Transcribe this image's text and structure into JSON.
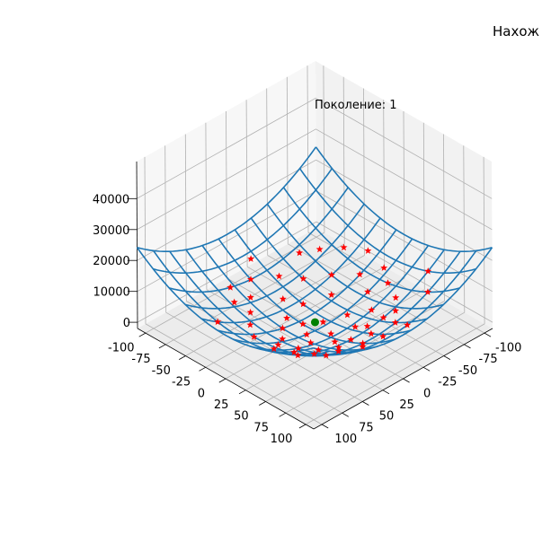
{
  "chart_data": {
    "type": "surface3d",
    "title": "Нахож",
    "annotation": "Поколение: 1",
    "x_ticks": [
      -100,
      -75,
      -50,
      -25,
      0,
      25,
      50,
      75,
      100
    ],
    "y_ticks": [
      -100,
      -75,
      -50,
      -25,
      0,
      25,
      50,
      75,
      100
    ],
    "z_ticks": [
      0,
      10000,
      20000,
      30000,
      40000
    ],
    "xlim": [
      -110,
      110
    ],
    "ylim": [
      -110,
      110
    ],
    "zlim": [
      -2000,
      52000
    ],
    "surface": {
      "function": "x^2 + y^2",
      "grid_min": -110,
      "grid_max": 110,
      "grid_lines": 12,
      "color": "#1f77b4"
    },
    "population": {
      "marker": "star",
      "color": "#ff0000",
      "points": [
        [
          -60,
          40,
          5000
        ],
        [
          -45,
          55,
          5200
        ],
        [
          -70,
          20,
          5300
        ],
        [
          -30,
          70,
          5800
        ],
        [
          -55,
          10,
          3200
        ],
        [
          -40,
          30,
          2500
        ],
        [
          -20,
          45,
          2400
        ],
        [
          -65,
          -10,
          4400
        ],
        [
          -50,
          -30,
          3500
        ],
        [
          -35,
          -15,
          1500
        ],
        [
          -25,
          15,
          900
        ],
        [
          -15,
          35,
          1500
        ],
        [
          -10,
          60,
          3700
        ],
        [
          -75,
          -40,
          7200
        ],
        [
          -80,
          5,
          6500
        ],
        [
          -5,
          80,
          6500
        ],
        [
          10,
          70,
          5000
        ],
        [
          25,
          55,
          3700
        ],
        [
          15,
          40,
          1800
        ],
        [
          5,
          25,
          700
        ],
        [
          -5,
          5,
          100
        ],
        [
          10,
          -5,
          150
        ],
        [
          20,
          10,
          500
        ],
        [
          30,
          25,
          1500
        ],
        [
          40,
          45,
          3600
        ],
        [
          50,
          30,
          3400
        ],
        [
          55,
          55,
          6000
        ],
        [
          35,
          65,
          5400
        ],
        [
          20,
          80,
          6800
        ],
        [
          65,
          40,
          5800
        ],
        [
          -30,
          -45,
          3000
        ],
        [
          -15,
          -60,
          3800
        ],
        [
          0,
          -40,
          1600
        ],
        [
          -10,
          -25,
          700
        ],
        [
          15,
          -20,
          600
        ],
        [
          30,
          -10,
          1000
        ],
        [
          45,
          5,
          2000
        ],
        [
          60,
          15,
          3800
        ],
        [
          70,
          -5,
          4900
        ],
        [
          55,
          -25,
          3600
        ],
        [
          40,
          -40,
          3200
        ],
        [
          25,
          -55,
          3600
        ],
        [
          10,
          -70,
          5000
        ],
        [
          -5,
          -85,
          7200
        ],
        [
          -45,
          -65,
          6200
        ],
        [
          -60,
          -55,
          6600
        ],
        [
          -25,
          90,
          8700
        ],
        [
          75,
          25,
          6200
        ],
        [
          35,
          -70,
          6100
        ],
        [
          -85,
          -20,
          7600
        ],
        [
          5,
          50,
          2500
        ],
        [
          -35,
          50,
          3700
        ],
        [
          45,
          -55,
          5000
        ],
        [
          80,
          60,
          10000
        ],
        [
          -90,
          50,
          10600
        ],
        [
          60,
          75,
          9200
        ],
        [
          -70,
          70,
          9800
        ],
        [
          90,
          -30,
          9000
        ]
      ]
    },
    "best": {
      "marker": "circle",
      "color": "#008000",
      "point": [
        0,
        0,
        0
      ]
    }
  }
}
